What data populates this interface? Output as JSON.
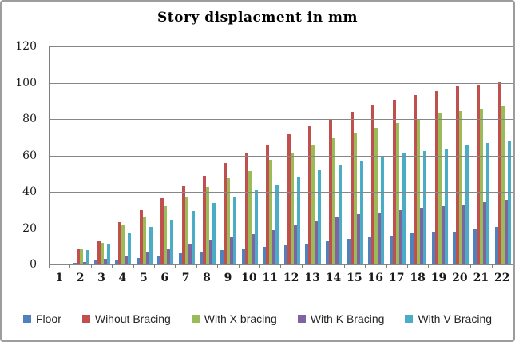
{
  "chart_data": {
    "type": "bar",
    "title": "Story displacment in mm",
    "categories": [
      "1",
      "2",
      "3",
      "4",
      "5",
      "6",
      "7",
      "8",
      "9",
      "10",
      "11",
      "12",
      "13",
      "14",
      "15",
      "16",
      "17",
      "18",
      "19",
      "20",
      "21",
      "22"
    ],
    "series": [
      {
        "name": "Floor",
        "color": "#4F81BD",
        "values": [
          0,
          1,
          2,
          2.5,
          3.5,
          5,
          6,
          7,
          8,
          9,
          9.5,
          10.5,
          11.5,
          13,
          14,
          15,
          16,
          17,
          18,
          18,
          20,
          20.5
        ]
      },
      {
        "name": "Wihout Bracing",
        "color": "#C0504D",
        "values": [
          0,
          9,
          13,
          23.5,
          30,
          36.5,
          43,
          49,
          56,
          61,
          66,
          71.5,
          76,
          80,
          84,
          87.5,
          90.5,
          93,
          95.5,
          98,
          99,
          100.5
        ]
      },
      {
        "name": "With X bracing",
        "color": "#9BBB59",
        "values": [
          0,
          9,
          12,
          21.5,
          26,
          32,
          37,
          42.5,
          47.5,
          51.5,
          57.5,
          61,
          65.5,
          69.5,
          72,
          75,
          78,
          80,
          83,
          84.5,
          85.5,
          87
        ]
      },
      {
        "name": "With K Bracing",
        "color": "#8064A2",
        "values": [
          0,
          1.5,
          3,
          5,
          7,
          9,
          11.5,
          13.5,
          15,
          16.5,
          19,
          22,
          24,
          26,
          27.5,
          28.5,
          30,
          31,
          32,
          33,
          34.5,
          35.5
        ]
      },
      {
        "name": "With V Bracing",
        "color": "#4BACC6",
        "values": [
          0,
          8,
          11.5,
          17.5,
          20.5,
          24.5,
          29.5,
          34,
          37.5,
          41,
          44,
          48,
          52,
          55,
          57,
          59.5,
          61,
          62.5,
          63.5,
          66,
          67,
          68
        ]
      }
    ],
    "ylim": [
      0,
      120
    ],
    "yticks": [
      120,
      100,
      80,
      60,
      40,
      20,
      0
    ],
    "xlabel": "",
    "ylabel": "",
    "grid": true,
    "legend_position": "bottom",
    "gridline_color": "#878787"
  }
}
